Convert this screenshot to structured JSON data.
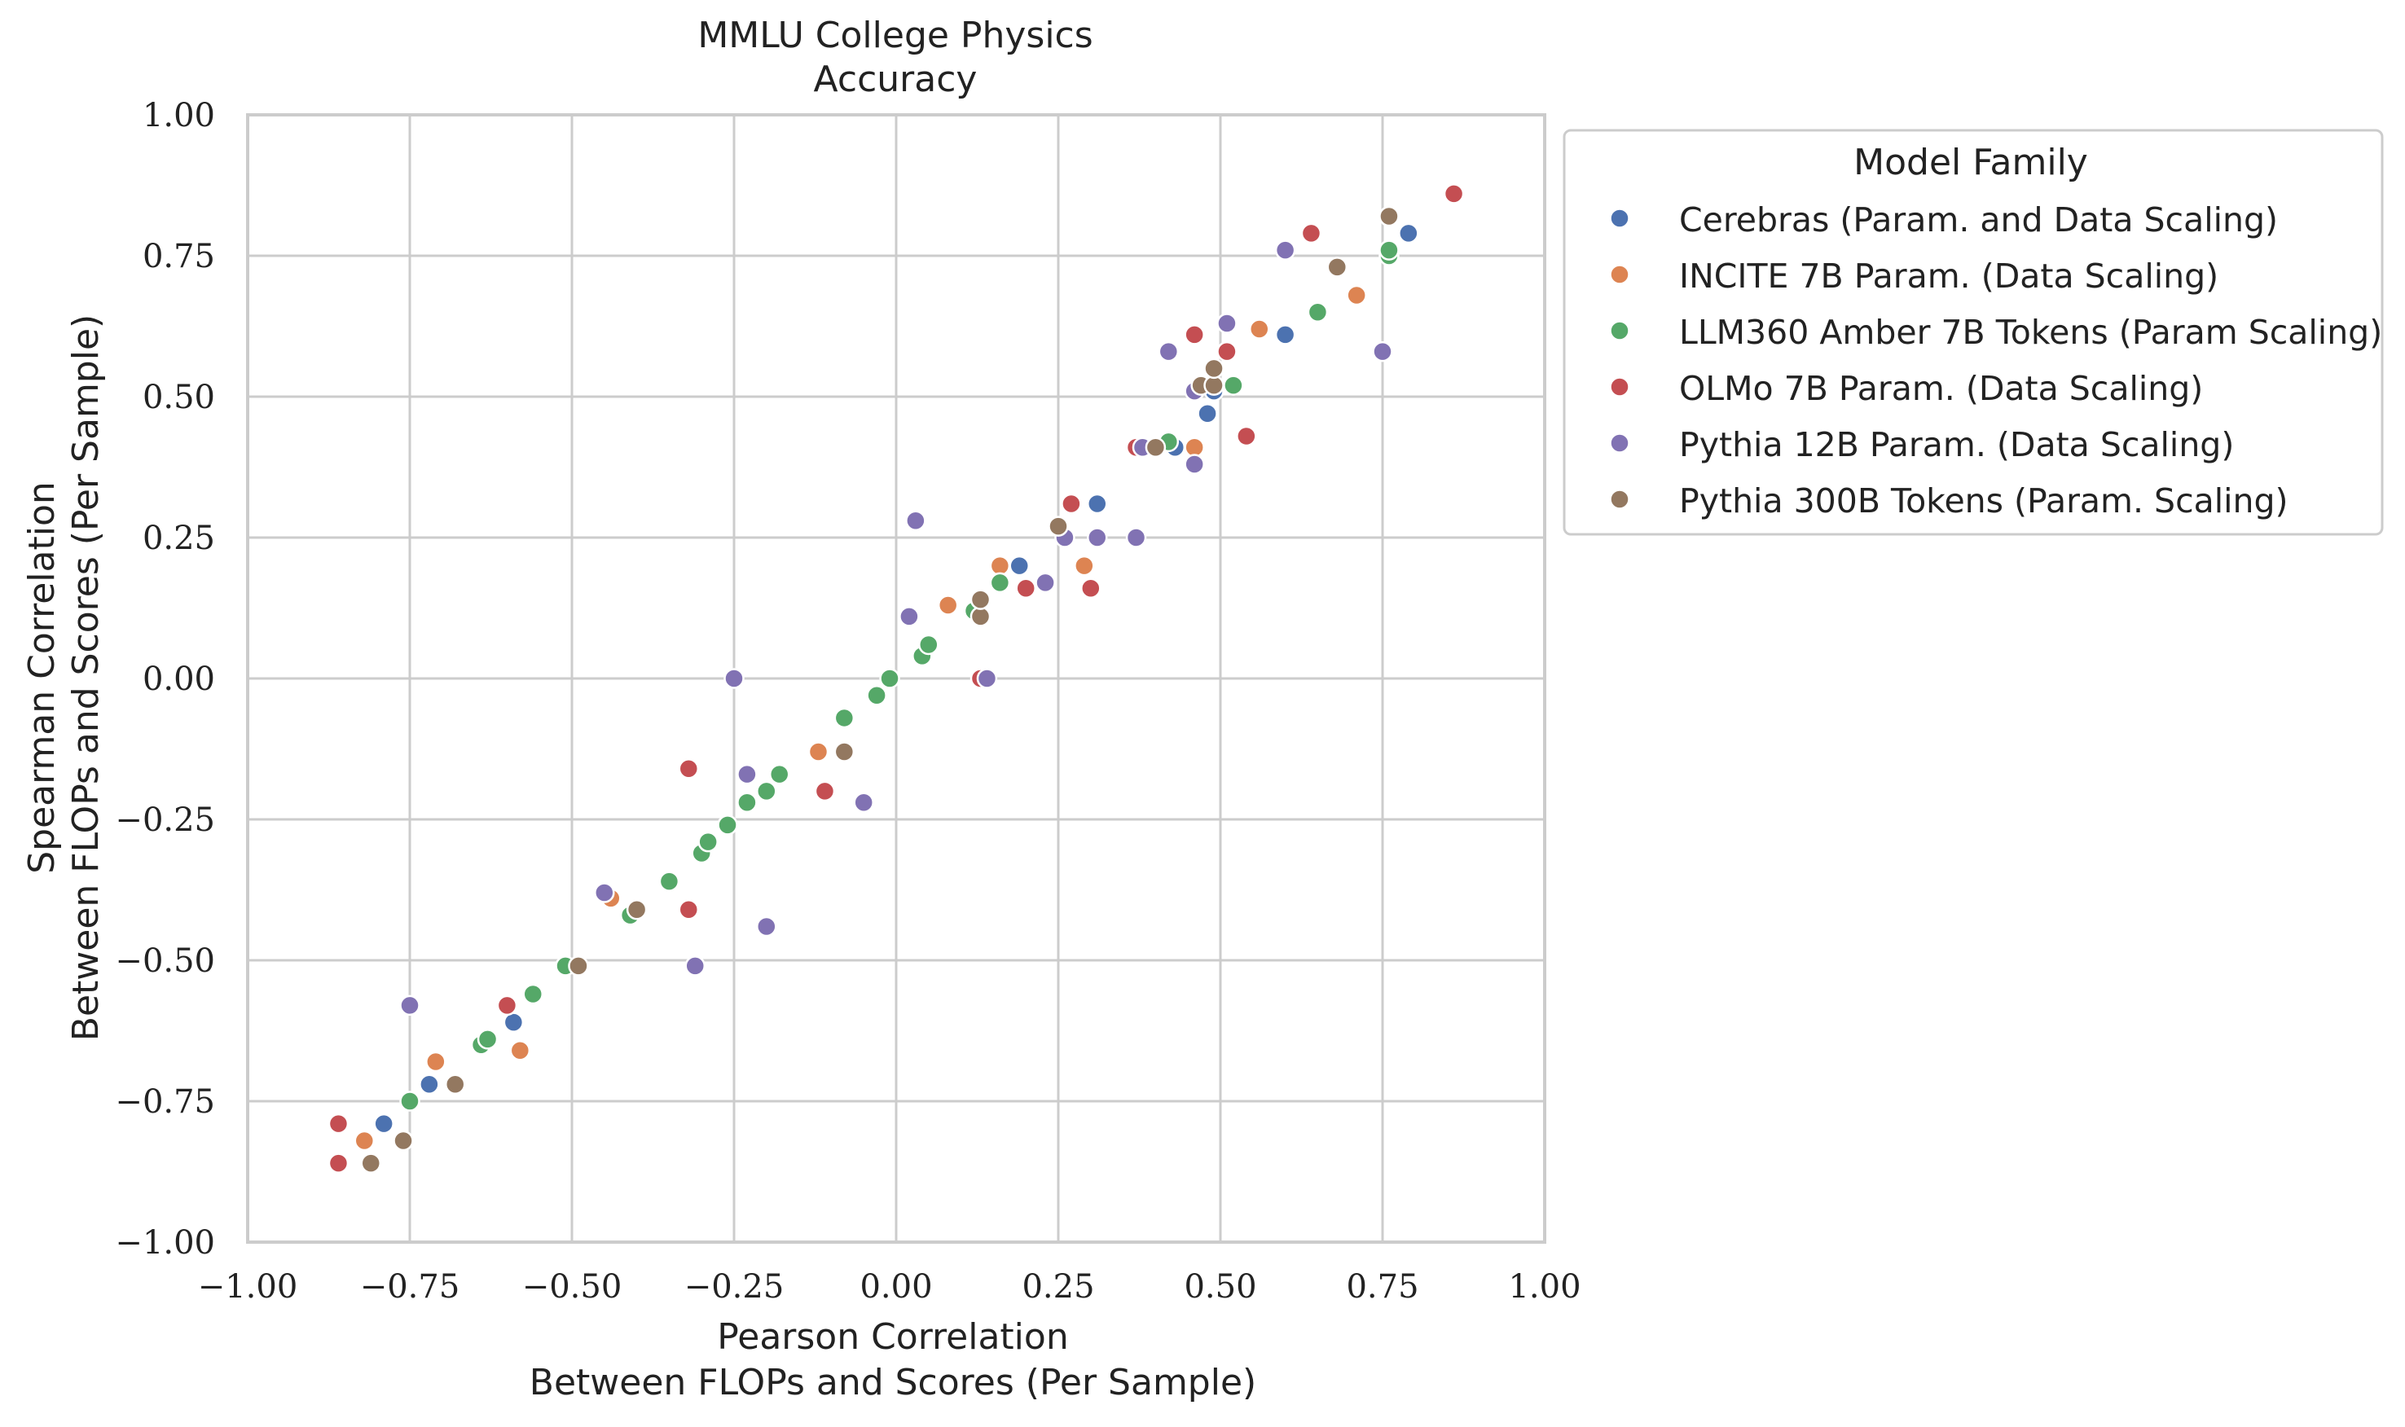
{
  "chart_data": {
    "type": "scatter",
    "title": "MMLU College Physics",
    "subtitle": "Accuracy",
    "xlabel": "Pearson Correlation",
    "xlabel2": "Between FLOPs and Scores (Per Sample)",
    "ylabel": "Spearman Correlation",
    "ylabel2": "Between FLOPs and Scores (Per Sample)",
    "xlim": [
      -1.0,
      1.0
    ],
    "ylim": [
      -1.0,
      1.0
    ],
    "xticks": [
      -1.0,
      -0.75,
      -0.5,
      -0.25,
      0.0,
      0.25,
      0.5,
      0.75,
      1.0
    ],
    "yticks": [
      -1.0,
      -0.75,
      -0.5,
      -0.25,
      0.0,
      0.25,
      0.5,
      0.75,
      1.0
    ],
    "xtick_labels": [
      "−1.00",
      "−0.75",
      "−0.50",
      "−0.25",
      "0.00",
      "0.25",
      "0.50",
      "0.75",
      "1.00"
    ],
    "ytick_labels": [
      "−1.00",
      "−0.75",
      "−0.50",
      "−0.25",
      "0.00",
      "0.25",
      "0.50",
      "0.75",
      "1.00"
    ],
    "grid": true,
    "legend": {
      "title": "Model Family",
      "placement": "outside-right-top"
    },
    "series": [
      {
        "name": "Cerebras (Param. and Data Scaling)",
        "color": "#4c72b0",
        "points": [
          [
            -0.79,
            -0.79
          ],
          [
            -0.72,
            -0.72
          ],
          [
            -0.59,
            -0.61
          ],
          [
            -0.2,
            -0.2
          ],
          [
            0.19,
            0.2
          ],
          [
            0.31,
            0.31
          ],
          [
            0.43,
            0.41
          ],
          [
            0.48,
            0.47
          ],
          [
            0.49,
            0.51
          ],
          [
            0.6,
            0.61
          ],
          [
            0.79,
            0.79
          ]
        ]
      },
      {
        "name": "INCITE 7B Param. (Data Scaling)",
        "color": "#dd8452",
        "points": [
          [
            -0.82,
            -0.82
          ],
          [
            -0.71,
            -0.68
          ],
          [
            -0.58,
            -0.66
          ],
          [
            -0.44,
            -0.39
          ],
          [
            -0.12,
            -0.13
          ],
          [
            -0.08,
            -0.13
          ],
          [
            0.08,
            0.13
          ],
          [
            0.16,
            0.2
          ],
          [
            0.29,
            0.2
          ],
          [
            0.37,
            0.41
          ],
          [
            0.46,
            0.41
          ],
          [
            0.56,
            0.62
          ],
          [
            0.71,
            0.68
          ]
        ]
      },
      {
        "name": "LLM360 Amber 7B Tokens (Param Scaling)",
        "color": "#55a868",
        "points": [
          [
            -0.75,
            -0.75
          ],
          [
            -0.64,
            -0.65
          ],
          [
            -0.63,
            -0.64
          ],
          [
            -0.56,
            -0.56
          ],
          [
            -0.51,
            -0.51
          ],
          [
            -0.41,
            -0.42
          ],
          [
            -0.35,
            -0.36
          ],
          [
            -0.3,
            -0.31
          ],
          [
            -0.29,
            -0.29
          ],
          [
            -0.26,
            -0.26
          ],
          [
            -0.23,
            -0.22
          ],
          [
            -0.2,
            -0.2
          ],
          [
            -0.18,
            -0.17
          ],
          [
            -0.08,
            -0.07
          ],
          [
            -0.03,
            -0.03
          ],
          [
            -0.01,
            0.0
          ],
          [
            0.04,
            0.04
          ],
          [
            0.05,
            0.06
          ],
          [
            0.12,
            0.12
          ],
          [
            0.16,
            0.17
          ],
          [
            0.42,
            0.42
          ],
          [
            0.52,
            0.52
          ],
          [
            0.65,
            0.65
          ],
          [
            0.76,
            0.75
          ],
          [
            0.76,
            0.76
          ]
        ]
      },
      {
        "name": "OLMo 7B Param. (Data Scaling)",
        "color": "#c44e52",
        "points": [
          [
            -0.86,
            -0.86
          ],
          [
            -0.86,
            -0.79
          ],
          [
            -0.6,
            -0.58
          ],
          [
            -0.32,
            -0.16
          ],
          [
            -0.32,
            -0.41
          ],
          [
            -0.11,
            -0.2
          ],
          [
            0.13,
            0.0
          ],
          [
            0.2,
            0.16
          ],
          [
            0.27,
            0.31
          ],
          [
            0.3,
            0.16
          ],
          [
            0.37,
            0.41
          ],
          [
            0.46,
            0.61
          ],
          [
            0.51,
            0.58
          ],
          [
            0.54,
            0.43
          ],
          [
            0.64,
            0.79
          ],
          [
            0.86,
            0.86
          ]
        ]
      },
      {
        "name": "Pythia 12B Param. (Data Scaling)",
        "color": "#8172b3",
        "points": [
          [
            -0.75,
            -0.58
          ],
          [
            -0.45,
            -0.38
          ],
          [
            -0.31,
            -0.51
          ],
          [
            -0.25,
            0.0
          ],
          [
            -0.23,
            -0.17
          ],
          [
            -0.2,
            -0.44
          ],
          [
            -0.05,
            -0.22
          ],
          [
            0.02,
            0.11
          ],
          [
            0.03,
            0.28
          ],
          [
            0.14,
            0.0
          ],
          [
            0.23,
            0.17
          ],
          [
            0.26,
            0.25
          ],
          [
            0.31,
            0.25
          ],
          [
            0.37,
            0.25
          ],
          [
            0.38,
            0.41
          ],
          [
            0.42,
            0.58
          ],
          [
            0.46,
            0.51
          ],
          [
            0.46,
            0.38
          ],
          [
            0.51,
            0.63
          ],
          [
            0.6,
            0.76
          ],
          [
            0.75,
            0.58
          ]
        ]
      },
      {
        "name": "Pythia 300B Tokens (Param. Scaling)",
        "color": "#937860",
        "points": [
          [
            -0.76,
            -0.82
          ],
          [
            -0.81,
            -0.86
          ],
          [
            -0.68,
            -0.72
          ],
          [
            -0.49,
            -0.51
          ],
          [
            -0.4,
            -0.41
          ],
          [
            -0.08,
            -0.13
          ],
          [
            0.13,
            0.11
          ],
          [
            0.13,
            0.14
          ],
          [
            0.25,
            0.27
          ],
          [
            0.4,
            0.41
          ],
          [
            0.47,
            0.52
          ],
          [
            0.49,
            0.52
          ],
          [
            0.49,
            0.55
          ],
          [
            0.68,
            0.73
          ],
          [
            0.76,
            0.82
          ]
        ]
      }
    ]
  }
}
